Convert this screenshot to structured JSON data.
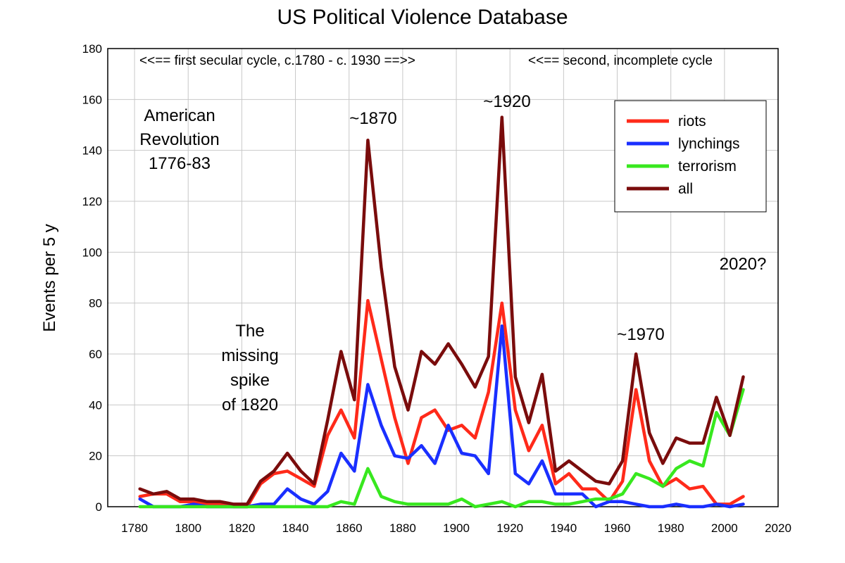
{
  "chart_data": {
    "type": "line",
    "title": "US Political Violence Database",
    "ylabel": "Events per 5 y",
    "xlabel": "",
    "xlim": [
      1770,
      2020
    ],
    "ylim": [
      0,
      180
    ],
    "xticks": [
      1780,
      1800,
      1820,
      1840,
      1860,
      1880,
      1900,
      1920,
      1940,
      1960,
      1980,
      2000,
      2020
    ],
    "yticks": [
      0,
      20,
      40,
      60,
      80,
      100,
      120,
      140,
      160,
      180
    ],
    "grid": true,
    "legend_position": "top-right",
    "x": [
      1782,
      1787,
      1792,
      1797,
      1802,
      1807,
      1812,
      1817,
      1822,
      1827,
      1832,
      1837,
      1842,
      1847,
      1852,
      1857,
      1862,
      1867,
      1872,
      1877,
      1882,
      1887,
      1892,
      1897,
      1902,
      1907,
      1912,
      1917,
      1922,
      1927,
      1932,
      1937,
      1942,
      1947,
      1952,
      1957,
      1962,
      1967,
      1972,
      1977,
      1982,
      1987,
      1992,
      1997,
      2002,
      2007
    ],
    "series": [
      {
        "name": "riots",
        "color": "#ff2a1a",
        "values": [
          4,
          5,
          5,
          2,
          2,
          1,
          1,
          0,
          0,
          9,
          13,
          14,
          11,
          8,
          28,
          38,
          27,
          81,
          58,
          35,
          17,
          35,
          38,
          30,
          32,
          27,
          45,
          80,
          38,
          22,
          32,
          9,
          13,
          7,
          7,
          2,
          10,
          46,
          18,
          8,
          11,
          7,
          8,
          1,
          1,
          4
        ]
      },
      {
        "name": "lynchings",
        "color": "#1a2fff",
        "values": [
          3,
          0,
          0,
          0,
          1,
          0,
          0,
          0,
          0,
          1,
          1,
          7,
          3,
          1,
          6,
          21,
          14,
          48,
          32,
          20,
          19,
          24,
          17,
          32,
          21,
          20,
          13,
          71,
          13,
          9,
          18,
          5,
          5,
          5,
          0,
          2,
          2,
          1,
          0,
          0,
          1,
          0,
          0,
          1,
          0,
          1
        ]
      },
      {
        "name": "terrorism",
        "color": "#38e81f",
        "values": [
          0,
          0,
          0,
          0,
          0,
          0,
          0,
          0,
          0,
          0,
          0,
          0,
          0,
          0,
          0,
          2,
          1,
          15,
          4,
          2,
          1,
          1,
          1,
          1,
          3,
          0,
          1,
          2,
          0,
          2,
          2,
          1,
          1,
          2,
          3,
          3,
          5,
          13,
          11,
          8,
          15,
          18,
          16,
          37,
          28,
          46
        ]
      },
      {
        "name": "all",
        "color": "#7a0c0c",
        "values": [
          7,
          5,
          6,
          3,
          3,
          2,
          2,
          1,
          1,
          10,
          14,
          21,
          14,
          9,
          34,
          61,
          42,
          144,
          94,
          55,
          38,
          61,
          56,
          64,
          56,
          47,
          59,
          153,
          51,
          33,
          52,
          14,
          18,
          14,
          10,
          9,
          18,
          60,
          29,
          17,
          27,
          25,
          25,
          43,
          28,
          51
        ]
      }
    ],
    "annotations": {
      "first_cycle": "<<==  first secular cycle, c.1780 - c. 1930  ==>>",
      "second_cycle": "<<== second, incomplete cycle",
      "revolution": [
        "American",
        "Revolution",
        "1776-83"
      ],
      "peak_1870": "~1870",
      "peak_1920": "~1920",
      "peak_1970": "~1970",
      "missing_spike": [
        "The",
        "missing",
        "spike",
        "of 1820"
      ],
      "question_2020": "2020?"
    }
  }
}
